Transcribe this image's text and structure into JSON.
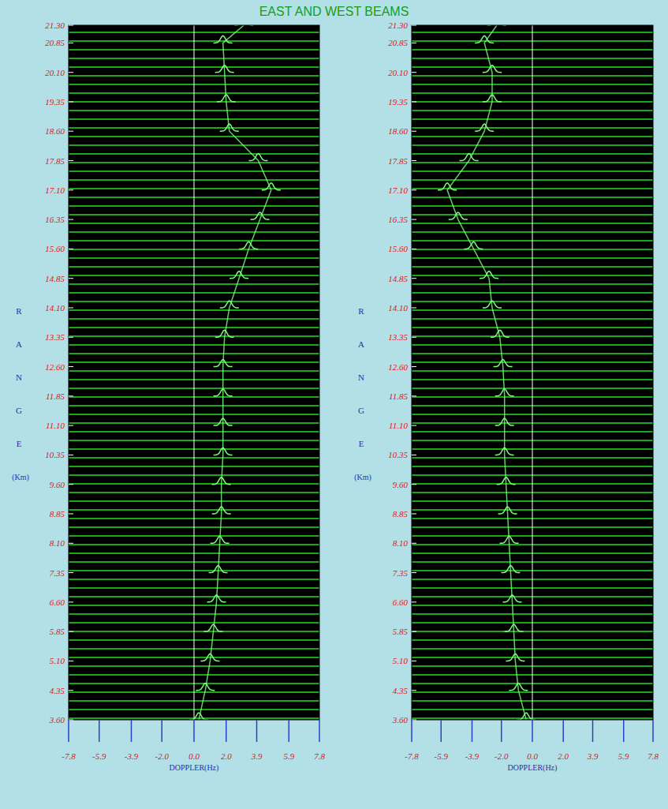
{
  "title": "EAST AND WEST BEAMS",
  "chart_data": [
    {
      "type": "line",
      "orientation": "horizontal",
      "x_label": "DOPPLER(Hz)",
      "y_label": "RANGE",
      "y_label_unit": "(Km)",
      "xlim": [
        -7.8,
        7.8
      ],
      "ylim": [
        3.6,
        21.3
      ],
      "xticks": [
        -7.8,
        -5.9,
        -3.9,
        {
          "value": -2.0,
          "label": "-2.0"
        },
        {
          "value": 0.0,
          "label": "0.0"
        },
        {
          "value": 2.0,
          "label": "2.0"
        },
        3.9,
        5.9,
        7.8
      ],
      "yticks": [
        {
          "value": 3.6,
          "label": "3.60"
        },
        {
          "value": 4.35,
          "label": "4.35"
        },
        {
          "value": 5.1,
          "label": "5.10"
        },
        {
          "value": 5.85,
          "label": "5.85"
        },
        {
          "value": 6.6,
          "label": "6.60"
        },
        {
          "value": 7.35,
          "label": "7.35"
        },
        {
          "value": 8.1,
          "label": "8.10"
        },
        {
          "value": 8.85,
          "label": "8.85"
        },
        {
          "value": 9.6,
          "label": "9.60"
        },
        {
          "value": 10.35,
          "label": "10.35"
        },
        {
          "value": 11.1,
          "label": "11.10"
        },
        {
          "value": 11.85,
          "label": "11.85"
        },
        {
          "value": 12.6,
          "label": "12.60"
        },
        {
          "value": 13.35,
          "label": "13.35"
        },
        {
          "value": 14.1,
          "label": "14.10"
        },
        {
          "value": 14.85,
          "label": "14.85"
        },
        {
          "value": 15.6,
          "label": "15.60"
        },
        {
          "value": 16.35,
          "label": "16.35"
        },
        {
          "value": 17.1,
          "label": "17.10"
        },
        {
          "value": 17.85,
          "label": "17.85"
        },
        {
          "value": 18.6,
          "label": "18.60"
        },
        {
          "value": 19.35,
          "label": "19.35"
        },
        {
          "value": 20.1,
          "label": "20.10"
        },
        {
          "value": 20.85,
          "label": "20.85"
        },
        {
          "value": 21.3,
          "label": "21.30"
        }
      ],
      "ranges": [
        3.6,
        4.35,
        5.1,
        5.85,
        6.6,
        7.35,
        8.1,
        8.85,
        9.6,
        10.35,
        11.1,
        11.85,
        12.6,
        13.35,
        14.1,
        14.85,
        15.6,
        16.35,
        17.1,
        17.85,
        18.6,
        19.35,
        20.1,
        20.85,
        21.3
      ],
      "series": [
        {
          "color": "#7dff7d",
          "values": [
            0.3,
            0.7,
            1.0,
            1.2,
            1.4,
            1.5,
            1.6,
            1.7,
            1.7,
            1.8,
            1.8,
            1.8,
            1.8,
            1.9,
            2.2,
            2.8,
            3.4,
            4.1,
            4.8,
            4.0,
            2.2,
            2.0,
            1.9,
            1.8,
            3.1
          ]
        }
      ]
    },
    {
      "type": "line",
      "orientation": "horizontal",
      "x_label": "DOPPLER(Hz)",
      "y_label": "RANGE",
      "y_label_unit": "(Km)",
      "xlim": [
        -7.8,
        7.8
      ],
      "ylim": [
        3.6,
        21.3
      ],
      "xticks": [
        -7.8,
        -5.9,
        -3.9,
        {
          "value": -2.0,
          "label": "-2.0"
        },
        {
          "value": 0.0,
          "label": "0.0"
        },
        {
          "value": 2.0,
          "label": "2.0"
        },
        3.9,
        5.9,
        7.8
      ],
      "yticks": [
        {
          "value": 3.6,
          "label": "3.60"
        },
        {
          "value": 4.35,
          "label": "4.35"
        },
        {
          "value": 5.1,
          "label": "5.10"
        },
        {
          "value": 5.85,
          "label": "5.85"
        },
        {
          "value": 6.6,
          "label": "6.60"
        },
        {
          "value": 7.35,
          "label": "7.35"
        },
        {
          "value": 8.1,
          "label": "8.10"
        },
        {
          "value": 8.85,
          "label": "8.85"
        },
        {
          "value": 9.6,
          "label": "9.60"
        },
        {
          "value": 10.35,
          "label": "10.35"
        },
        {
          "value": 11.1,
          "label": "11.10"
        },
        {
          "value": 11.85,
          "label": "11.85"
        },
        {
          "value": 12.6,
          "label": "12.60"
        },
        {
          "value": 13.35,
          "label": "13.35"
        },
        {
          "value": 14.1,
          "label": "14.10"
        },
        {
          "value": 14.85,
          "label": "14.85"
        },
        {
          "value": 15.6,
          "label": "15.60"
        },
        {
          "value": 16.35,
          "label": "16.35"
        },
        {
          "value": 17.1,
          "label": "17.10"
        },
        {
          "value": 17.85,
          "label": "17.85"
        },
        {
          "value": 18.6,
          "label": "18.60"
        },
        {
          "value": 19.35,
          "label": "19.35"
        },
        {
          "value": 20.1,
          "label": "20.10"
        },
        {
          "value": 20.85,
          "label": "20.85"
        },
        {
          "value": 21.3,
          "label": "21.30"
        }
      ],
      "ranges": [
        3.6,
        4.35,
        5.1,
        5.85,
        6.6,
        7.35,
        8.1,
        8.85,
        9.6,
        10.35,
        11.1,
        11.85,
        12.6,
        13.35,
        14.1,
        14.85,
        15.6,
        16.35,
        17.1,
        17.85,
        18.6,
        19.35,
        20.1,
        20.85,
        21.3
      ],
      "series": [
        {
          "color": "#7dff7d",
          "values": [
            -0.4,
            -0.9,
            -1.1,
            -1.2,
            -1.3,
            -1.4,
            -1.5,
            -1.6,
            -1.7,
            -1.8,
            -1.8,
            -1.8,
            -1.9,
            -2.1,
            -2.6,
            -2.8,
            -3.8,
            -4.8,
            -5.5,
            -4.1,
            -3.1,
            -2.6,
            -2.6,
            -3.1,
            -2.3
          ]
        }
      ]
    }
  ]
}
